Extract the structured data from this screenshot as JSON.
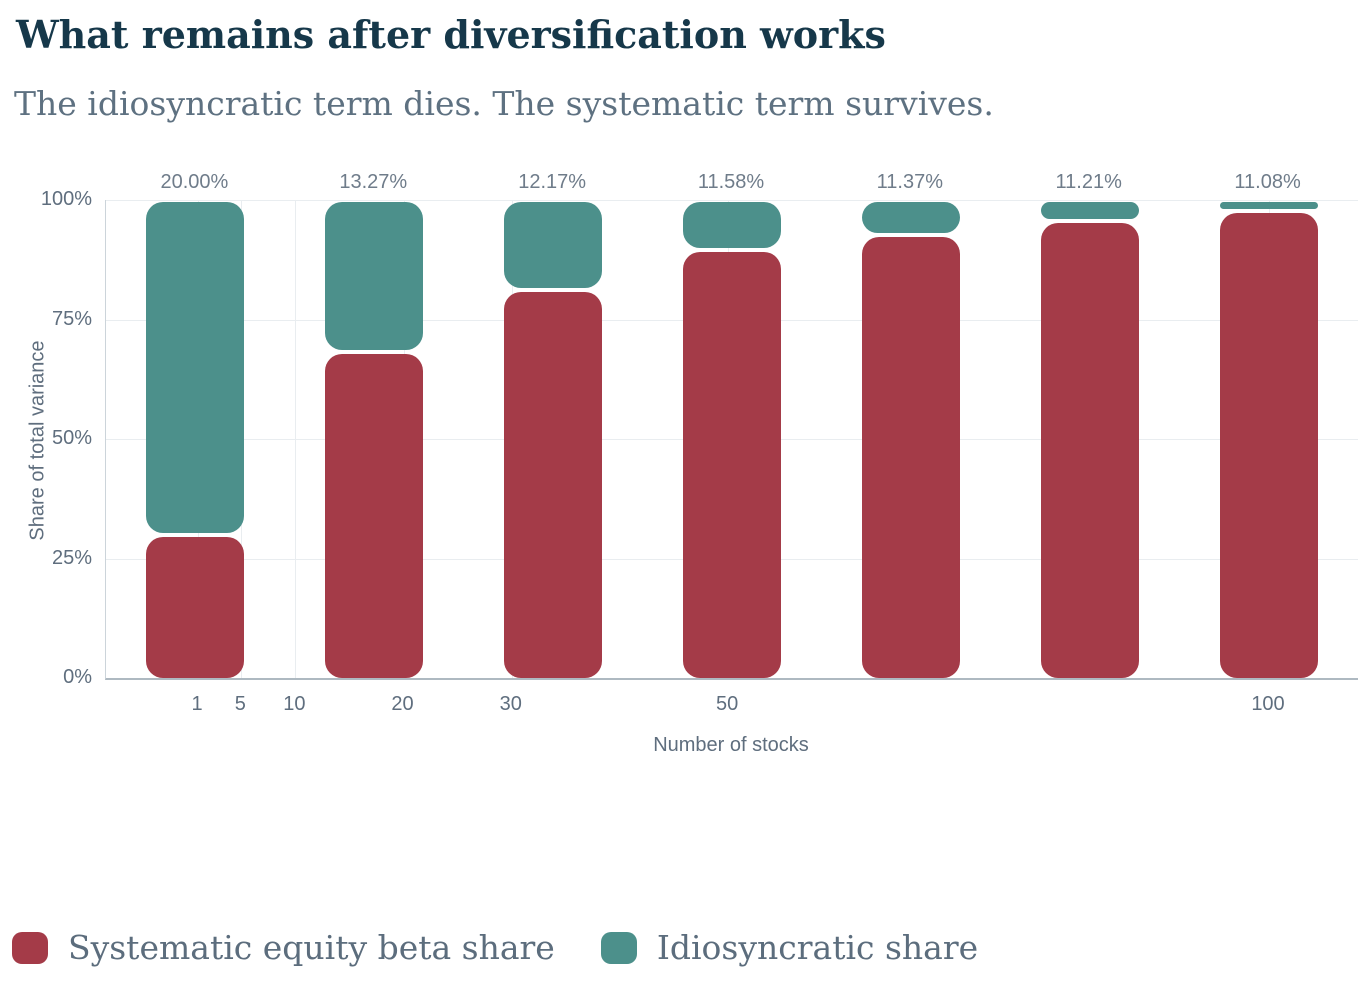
{
  "header": {
    "title": "What remains after diversification works",
    "subtitle": "The idiosyncratic term dies. The systematic term survives."
  },
  "chart_data": {
    "type": "bar",
    "stacked": true,
    "title": "What remains after diversification works",
    "subtitle": "The idiosyncratic term dies. The systematic term survives.",
    "categories": [
      1,
      5,
      10,
      20,
      30,
      50,
      100
    ],
    "series": [
      {
        "name": "Systematic equity beta share",
        "color": "#a43b48",
        "values": [
          30.0,
          68.18,
          81.08,
          89.55,
          92.78,
          95.54,
          97.72
        ]
      },
      {
        "name": "Idiosyncratic share",
        "color": "#4c908b",
        "values": [
          70.0,
          31.82,
          18.92,
          10.45,
          7.22,
          4.46,
          2.28
        ]
      }
    ],
    "bar_labels": [
      "20.00%",
      "13.27%",
      "12.17%",
      "11.58%",
      "11.37%",
      "11.21%",
      "11.08%"
    ],
    "xlabel": "Number of stocks",
    "ylabel": "Share of total variance",
    "x_ticks": [
      1,
      5,
      10,
      20,
      30,
      50,
      100
    ],
    "y_ticks": [
      "0%",
      "25%",
      "50%",
      "75%",
      "100%"
    ],
    "ylim": [
      0,
      100
    ],
    "xlim": [
      1,
      100
    ],
    "grid": true,
    "legend_position": "bottom"
  },
  "colors": {
    "systematic": "#a43b48",
    "idiosyncratic": "#4c908b",
    "title_text": "#16384a",
    "subtitle_text": "#5e7181",
    "axis_text": "#5f6e7e",
    "bar_label_text": "#6f7c8a",
    "gridline": "#e9edf0",
    "axis_line": "#aeb9c1"
  }
}
